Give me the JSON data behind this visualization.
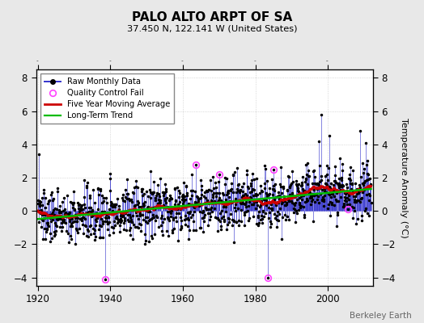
{
  "title": "PALO ALTO ARPT OF SA",
  "subtitle": "37.450 N, 122.141 W (United States)",
  "ylabel": "Temperature Anomaly (°C)",
  "watermark": "Berkeley Earth",
  "start_year": 1920,
  "end_year": 2012,
  "ylim": [
    -4.5,
    8.5
  ],
  "yticks": [
    -4,
    -2,
    0,
    2,
    4,
    6,
    8
  ],
  "xticks": [
    1920,
    1940,
    1960,
    1980,
    2000
  ],
  "bg_color": "#e8e8e8",
  "plot_bg_color": "#ffffff",
  "raw_line_color": "#3333cc",
  "raw_dot_color": "#000000",
  "moving_avg_color": "#cc0000",
  "trend_color": "#00bb00",
  "qc_fail_color": "#ff44ff",
  "legend_loc": "upper left",
  "seed": 137
}
